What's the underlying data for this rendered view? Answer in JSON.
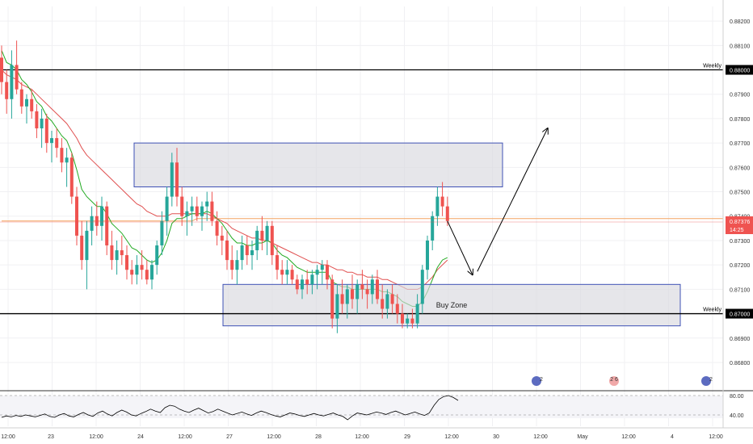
{
  "colors": {
    "up": "#26a69a",
    "down": "#ef5350",
    "ema_fast": "#22aa22",
    "ema_slow": "#e05050",
    "ema_long": "#f4a460",
    "zone_fill": "#d8d8de",
    "zone_stroke": "#3f51b5",
    "level": "#000000",
    "price_badge": "#ef5350",
    "rsi_line": "#000000",
    "grid": "#f0f0f3",
    "axis_text": "#333333"
  },
  "price_axis": {
    "ticks": [
      "0.88200",
      "0.88100",
      "0.88000",
      "0.87900",
      "0.87800",
      "0.87700",
      "0.87600",
      "0.87500",
      "0.87400",
      "0.87300",
      "0.87200",
      "0.87100",
      "0.87000",
      "0.86900",
      "0.86800"
    ],
    "current_price": "0.87376",
    "countdown": "14:25"
  },
  "levels": [
    {
      "label": "Weekly",
      "price": 0.88,
      "price_label": "0.88000"
    },
    {
      "label": "Weekly",
      "price": 0.87,
      "price_label": "0.87000"
    }
  ],
  "zones": [
    {
      "label": "",
      "top": 0.877,
      "bottom": 0.8752
    },
    {
      "label": "Buy Zone",
      "top": 0.8712,
      "bottom": 0.8695
    }
  ],
  "time_axis": {
    "ticks": [
      "12:00",
      "23",
      "12:00",
      "24",
      "12:00",
      "27",
      "12:00",
      "28",
      "12:00",
      "29",
      "12:00",
      "30",
      "12:00",
      "May",
      "12:00",
      "4",
      "12:00"
    ]
  },
  "rsi": {
    "levels": [
      "80.00",
      "40.00"
    ],
    "values": [
      35,
      38,
      36,
      39,
      37,
      40,
      38,
      36,
      39,
      42,
      37,
      35,
      40,
      43,
      38,
      36,
      41,
      45,
      40,
      37,
      44,
      48,
      42,
      38,
      45,
      50,
      46,
      40,
      38,
      43,
      47,
      52,
      48,
      45,
      55,
      60,
      58,
      52,
      48,
      45,
      50,
      54,
      49,
      44,
      47,
      52,
      48,
      44,
      40,
      43,
      46,
      42,
      39,
      44,
      48,
      45,
      41,
      38,
      36,
      40,
      44,
      42,
      39,
      37,
      40,
      43,
      40,
      38,
      41,
      44,
      40,
      37,
      30,
      38,
      44,
      42,
      40,
      43,
      46,
      44,
      41,
      45,
      48,
      44,
      40,
      43,
      46,
      42,
      39,
      44,
      60,
      72,
      78,
      80,
      76,
      70
    ]
  },
  "events": [
    {
      "label": "2"
    },
    {
      "label": "2 6"
    },
    {
      "label": "2"
    }
  ],
  "chart_data": {
    "type": "candlestick",
    "title": "",
    "xlabel": "",
    "ylabel": "",
    "ylim": [
      0.8678,
      0.8826
    ],
    "series_ohlc": [
      [
        0.8805,
        0.881,
        0.879,
        0.8795
      ],
      [
        0.8795,
        0.88,
        0.8782,
        0.8788
      ],
      [
        0.8788,
        0.8808,
        0.878,
        0.8802
      ],
      [
        0.8802,
        0.8812,
        0.879,
        0.8792
      ],
      [
        0.8792,
        0.8795,
        0.8782,
        0.8785
      ],
      [
        0.8785,
        0.879,
        0.8778,
        0.8788
      ],
      [
        0.8788,
        0.8792,
        0.878,
        0.8783
      ],
      [
        0.8783,
        0.8786,
        0.8772,
        0.8776
      ],
      [
        0.8776,
        0.8784,
        0.8768,
        0.878
      ],
      [
        0.878,
        0.8782,
        0.8766,
        0.877
      ],
      [
        0.877,
        0.8775,
        0.8762,
        0.8772
      ],
      [
        0.8772,
        0.8776,
        0.8764,
        0.8768
      ],
      [
        0.8768,
        0.8772,
        0.8758,
        0.8762
      ],
      [
        0.8762,
        0.8768,
        0.8752,
        0.8764
      ],
      [
        0.8764,
        0.8766,
        0.8745,
        0.8748
      ],
      [
        0.8748,
        0.8752,
        0.8728,
        0.8732
      ],
      [
        0.8732,
        0.8738,
        0.8718,
        0.8722
      ],
      [
        0.8722,
        0.8738,
        0.871,
        0.8734
      ],
      [
        0.8734,
        0.8744,
        0.8728,
        0.874
      ],
      [
        0.874,
        0.8746,
        0.8732,
        0.8736
      ],
      [
        0.8736,
        0.8748,
        0.873,
        0.8744
      ],
      [
        0.8744,
        0.8746,
        0.8724,
        0.8728
      ],
      [
        0.8728,
        0.8734,
        0.8718,
        0.8722
      ],
      [
        0.8722,
        0.873,
        0.8716,
        0.8726
      ],
      [
        0.8726,
        0.8732,
        0.872,
        0.8724
      ],
      [
        0.8724,
        0.8728,
        0.8714,
        0.8718
      ],
      [
        0.8718,
        0.8722,
        0.8712,
        0.8716
      ],
      [
        0.8716,
        0.8724,
        0.8712,
        0.872
      ],
      [
        0.872,
        0.8726,
        0.8714,
        0.8718
      ],
      [
        0.8718,
        0.8722,
        0.8712,
        0.8714
      ],
      [
        0.8714,
        0.8722,
        0.871,
        0.872
      ],
      [
        0.872,
        0.873,
        0.8716,
        0.8728
      ],
      [
        0.8728,
        0.8742,
        0.8724,
        0.8738
      ],
      [
        0.8738,
        0.8752,
        0.8732,
        0.8748
      ],
      [
        0.8748,
        0.8766,
        0.8744,
        0.8762
      ],
      [
        0.8762,
        0.8768,
        0.8744,
        0.8748
      ],
      [
        0.8748,
        0.8752,
        0.8736,
        0.874
      ],
      [
        0.874,
        0.8746,
        0.8732,
        0.8742
      ],
      [
        0.8742,
        0.8748,
        0.8736,
        0.8744
      ],
      [
        0.8744,
        0.8748,
        0.8738,
        0.874
      ],
      [
        0.874,
        0.8746,
        0.8734,
        0.8744
      ],
      [
        0.8744,
        0.875,
        0.8738,
        0.8746
      ],
      [
        0.8746,
        0.875,
        0.8736,
        0.8738
      ],
      [
        0.8738,
        0.8742,
        0.8728,
        0.8732
      ],
      [
        0.8732,
        0.8736,
        0.8724,
        0.873
      ],
      [
        0.873,
        0.8734,
        0.8718,
        0.8722
      ],
      [
        0.8722,
        0.8728,
        0.8714,
        0.8718
      ],
      [
        0.8718,
        0.8726,
        0.8712,
        0.8722
      ],
      [
        0.8722,
        0.8732,
        0.8718,
        0.8728
      ],
      [
        0.8728,
        0.8732,
        0.872,
        0.8724
      ],
      [
        0.8724,
        0.873,
        0.8718,
        0.8726
      ],
      [
        0.8726,
        0.8736,
        0.8722,
        0.8734
      ],
      [
        0.8734,
        0.874,
        0.8726,
        0.873
      ],
      [
        0.873,
        0.8738,
        0.8724,
        0.8736
      ],
      [
        0.8736,
        0.8738,
        0.872,
        0.8724
      ],
      [
        0.8724,
        0.8728,
        0.8714,
        0.8718
      ],
      [
        0.8718,
        0.8722,
        0.8712,
        0.8716
      ],
      [
        0.8716,
        0.8722,
        0.8712,
        0.8718
      ],
      [
        0.8718,
        0.872,
        0.8712,
        0.8714
      ],
      [
        0.8714,
        0.8716,
        0.8708,
        0.871
      ],
      [
        0.871,
        0.8716,
        0.8706,
        0.8714
      ],
      [
        0.8714,
        0.8718,
        0.8708,
        0.8712
      ],
      [
        0.8712,
        0.8718,
        0.8708,
        0.8716
      ],
      [
        0.8716,
        0.872,
        0.871,
        0.8718
      ],
      [
        0.8718,
        0.8722,
        0.8712,
        0.872
      ],
      [
        0.872,
        0.8722,
        0.871,
        0.8714
      ],
      [
        0.8714,
        0.8716,
        0.8694,
        0.8698
      ],
      [
        0.8698,
        0.8712,
        0.8692,
        0.8708
      ],
      [
        0.8708,
        0.8714,
        0.87,
        0.8704
      ],
      [
        0.8704,
        0.8712,
        0.8698,
        0.871
      ],
      [
        0.871,
        0.8716,
        0.8702,
        0.8706
      ],
      [
        0.8706,
        0.8714,
        0.87,
        0.8712
      ],
      [
        0.8712,
        0.8718,
        0.8706,
        0.871
      ],
      [
        0.871,
        0.8714,
        0.8702,
        0.8708
      ],
      [
        0.8708,
        0.8716,
        0.8704,
        0.8714
      ],
      [
        0.8714,
        0.8718,
        0.8704,
        0.8706
      ],
      [
        0.8706,
        0.8712,
        0.8698,
        0.8702
      ],
      [
        0.8702,
        0.871,
        0.8698,
        0.8708
      ],
      [
        0.8708,
        0.8712,
        0.87,
        0.8704
      ],
      [
        0.8704,
        0.8708,
        0.8696,
        0.87
      ],
      [
        0.87,
        0.8704,
        0.8694,
        0.8696
      ],
      [
        0.8696,
        0.87,
        0.8694,
        0.8698
      ],
      [
        0.8698,
        0.8702,
        0.8694,
        0.8696
      ],
      [
        0.8696,
        0.8708,
        0.8694,
        0.8704
      ],
      [
        0.8704,
        0.872,
        0.87,
        0.8718
      ],
      [
        0.8718,
        0.8732,
        0.8714,
        0.873
      ],
      [
        0.873,
        0.8742,
        0.8726,
        0.874
      ],
      [
        0.874,
        0.8752,
        0.8736,
        0.8748
      ],
      [
        0.8748,
        0.8754,
        0.874,
        0.8744
      ],
      [
        0.8744,
        0.8748,
        0.8736,
        0.8738
      ]
    ],
    "ema_fast": [
      0.8808,
      0.8803,
      0.8802,
      0.88,
      0.8796,
      0.8794,
      0.8791,
      0.8787,
      0.8785,
      0.8781,
      0.8779,
      0.8776,
      0.8773,
      0.8771,
      0.8766,
      0.8759,
      0.8751,
      0.8748,
      0.8746,
      0.8744,
      0.8744,
      0.8741,
      0.8737,
      0.8735,
      0.8733,
      0.873,
      0.8727,
      0.8726,
      0.8724,
      0.8722,
      0.8721,
      0.8722,
      0.8725,
      0.873,
      0.8737,
      0.8739,
      0.8739,
      0.874,
      0.8741,
      0.8741,
      0.8741,
      0.8742,
      0.8741,
      0.8739,
      0.8737,
      0.8734,
      0.8731,
      0.8729,
      0.8729,
      0.8728,
      0.8728,
      0.8729,
      0.8729,
      0.873,
      0.8729,
      0.8726,
      0.8724,
      0.8723,
      0.8721,
      0.8719,
      0.8718,
      0.8717,
      0.8717,
      0.8717,
      0.8717,
      0.8717,
      0.8713,
      0.8712,
      0.8711,
      0.8711,
      0.871,
      0.871,
      0.871,
      0.871,
      0.871,
      0.871,
      0.8709,
      0.8709,
      0.8708,
      0.8707,
      0.8705,
      0.8704,
      0.8703,
      0.8703,
      0.8705,
      0.8709,
      0.8714,
      0.8719,
      0.8722,
      0.8723
    ],
    "ema_slow": [
      0.88,
      0.8798,
      0.8797,
      0.8796,
      0.8794,
      0.8793,
      0.8792,
      0.879,
      0.8788,
      0.8786,
      0.8784,
      0.8782,
      0.878,
      0.8778,
      0.8775,
      0.8772,
      0.8768,
      0.8765,
      0.8763,
      0.8761,
      0.8759,
      0.8757,
      0.8755,
      0.8753,
      0.8751,
      0.8749,
      0.8747,
      0.8745,
      0.8744,
      0.8742,
      0.8741,
      0.874,
      0.874,
      0.874,
      0.8741,
      0.8741,
      0.8741,
      0.8741,
      0.8741,
      0.8741,
      0.8741,
      0.8741,
      0.874,
      0.8739,
      0.8738,
      0.8737,
      0.8735,
      0.8734,
      0.8733,
      0.8732,
      0.8731,
      0.8731,
      0.873,
      0.873,
      0.8729,
      0.8728,
      0.8727,
      0.8726,
      0.8725,
      0.8724,
      0.8723,
      0.8722,
      0.8721,
      0.8721,
      0.872,
      0.872,
      0.8719,
      0.8718,
      0.8718,
      0.8717,
      0.8717,
      0.8716,
      0.8716,
      0.8715,
      0.8715,
      0.8715,
      0.8714,
      0.8714,
      0.8713,
      0.8712,
      0.8711,
      0.871,
      0.871,
      0.871,
      0.8711,
      0.8713,
      0.8715,
      0.8718,
      0.872,
      0.8722
    ],
    "ema_long": [
      0.8738,
      0.8738,
      0.8738,
      0.8738,
      0.8738,
      0.8738,
      0.8738,
      0.8738,
      0.8738,
      0.8738,
      0.8738,
      0.8738,
      0.8738,
      0.8738,
      0.8738,
      0.8738,
      0.8738,
      0.8738,
      0.8738,
      0.8738,
      0.8738,
      0.8738,
      0.8738,
      0.8738,
      0.8738,
      0.8738,
      0.8738,
      0.8738,
      0.8738,
      0.8738,
      0.8738,
      0.8738,
      0.8738,
      0.8738,
      0.8738,
      0.8738,
      0.8738,
      0.8738,
      0.8738,
      0.8739,
      0.8739,
      0.8739,
      0.8739,
      0.8739,
      0.8739,
      0.8739,
      0.8739,
      0.8739,
      0.8739,
      0.8739,
      0.8739,
      0.8739,
      0.8739,
      0.8739,
      0.8739,
      0.8739,
      0.8739,
      0.8739,
      0.8739,
      0.8739,
      0.8739,
      0.8739,
      0.8739,
      0.8739,
      0.8739,
      0.8739,
      0.8739,
      0.8739,
      0.8739,
      0.8739,
      0.8739,
      0.8739,
      0.8739,
      0.8739,
      0.8739,
      0.8739,
      0.8739,
      0.8739,
      0.8739,
      0.8739,
      0.8739,
      0.8739,
      0.8739,
      0.8739,
      0.8739,
      0.8739,
      0.8739,
      0.8739,
      0.8739,
      0.8739
    ],
    "projection": [
      {
        "from_index": 89,
        "from_price": 0.8738,
        "to_offset": 5,
        "to_price": 0.8716
      },
      {
        "from_offset": 5,
        "from_price": 0.8716,
        "to_offset": 20,
        "to_price": 0.8776
      }
    ]
  }
}
